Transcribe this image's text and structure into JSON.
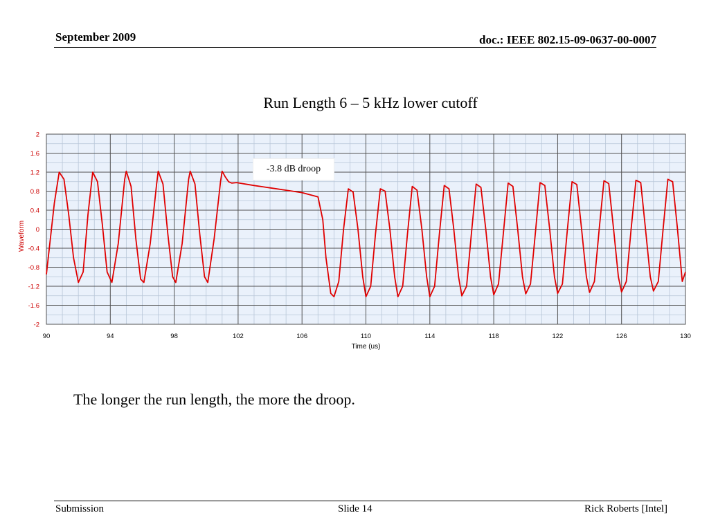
{
  "header": {
    "date": "September 2009",
    "doc_id": "doc.: IEEE 802.15-09-0637-00-0007"
  },
  "slide": {
    "title": "Run Length 6 – 5 kHz lower cutoff",
    "body_text": "The longer the run length, the more the droop."
  },
  "footer": {
    "left": "Submission",
    "center": "Slide 14",
    "right": "Rick Roberts [Intel]"
  },
  "colors": {
    "series": "#e00000",
    "axis_label": "#cc0000",
    "plot_bg": "#eaf1fb",
    "major_grid": "#505050",
    "minor_grid": "#b8c6d8"
  },
  "chart_data": {
    "type": "line",
    "title": "",
    "xlabel": "Time (us)",
    "ylabel": "Waveform",
    "xlim": [
      90,
      130
    ],
    "ylim": [
      -2,
      2
    ],
    "x_ticks": [
      90,
      94,
      98,
      102,
      106,
      110,
      114,
      118,
      122,
      126,
      130
    ],
    "y_ticks": [
      "2",
      "1.6",
      "1.2",
      "0.8",
      "0.4",
      "0",
      "-0.4",
      "-0.8",
      "-1.2",
      "-1.6",
      "-2"
    ],
    "grid": true,
    "annotations": [
      {
        "text": "-3.8 dB droop"
      }
    ],
    "series": [
      {
        "points": [
          [
            90.0,
            -0.95
          ],
          [
            90.5,
            0.55
          ],
          [
            90.8,
            1.2
          ],
          [
            91.1,
            1.05
          ],
          [
            91.4,
            0.3
          ],
          [
            91.7,
            -0.6
          ],
          [
            92.0,
            -1.12
          ],
          [
            92.3,
            -0.9
          ],
          [
            92.6,
            0.3
          ],
          [
            92.9,
            1.2
          ],
          [
            93.2,
            1.0
          ],
          [
            93.5,
            0.1
          ],
          [
            93.8,
            -0.9
          ],
          [
            94.1,
            -1.12
          ],
          [
            94.5,
            -0.3
          ],
          [
            94.9,
            1.05
          ],
          [
            95.0,
            1.22
          ],
          [
            95.3,
            0.9
          ],
          [
            95.6,
            -0.2
          ],
          [
            95.9,
            -1.05
          ],
          [
            96.1,
            -1.12
          ],
          [
            96.5,
            -0.3
          ],
          [
            96.9,
            0.95
          ],
          [
            97.0,
            1.22
          ],
          [
            97.3,
            0.95
          ],
          [
            97.6,
            -0.1
          ],
          [
            97.9,
            -1.0
          ],
          [
            98.1,
            -1.12
          ],
          [
            98.5,
            -0.3
          ],
          [
            98.9,
            1.05
          ],
          [
            99.0,
            1.22
          ],
          [
            99.3,
            0.95
          ],
          [
            99.6,
            -0.1
          ],
          [
            99.9,
            -1.0
          ],
          [
            100.1,
            -1.12
          ],
          [
            100.5,
            -0.2
          ],
          [
            100.9,
            1.0
          ],
          [
            101.0,
            1.22
          ],
          [
            101.2,
            1.1
          ],
          [
            101.4,
            1.0
          ],
          [
            101.6,
            0.97
          ],
          [
            101.9,
            0.98
          ],
          [
            103.0,
            0.92
          ],
          [
            104.0,
            0.87
          ],
          [
            105.0,
            0.82
          ],
          [
            106.0,
            0.77
          ],
          [
            107.0,
            0.68
          ],
          [
            107.3,
            0.2
          ],
          [
            107.5,
            -0.6
          ],
          [
            107.8,
            -1.35
          ],
          [
            108.0,
            -1.42
          ],
          [
            108.3,
            -1.1
          ],
          [
            108.6,
            0.0
          ],
          [
            108.9,
            0.85
          ],
          [
            109.2,
            0.78
          ],
          [
            109.5,
            0.0
          ],
          [
            109.8,
            -1.0
          ],
          [
            110.0,
            -1.42
          ],
          [
            110.3,
            -1.2
          ],
          [
            110.6,
            -0.1
          ],
          [
            110.9,
            0.85
          ],
          [
            111.2,
            0.8
          ],
          [
            111.5,
            0.0
          ],
          [
            111.8,
            -1.0
          ],
          [
            112.0,
            -1.42
          ],
          [
            112.3,
            -1.2
          ],
          [
            112.6,
            -0.1
          ],
          [
            112.9,
            0.9
          ],
          [
            113.2,
            0.82
          ],
          [
            113.5,
            0.0
          ],
          [
            113.8,
            -1.0
          ],
          [
            114.0,
            -1.42
          ],
          [
            114.3,
            -1.2
          ],
          [
            114.6,
            -0.1
          ],
          [
            114.9,
            0.92
          ],
          [
            115.2,
            0.85
          ],
          [
            115.5,
            0.0
          ],
          [
            115.8,
            -1.0
          ],
          [
            116.0,
            -1.4
          ],
          [
            116.3,
            -1.2
          ],
          [
            116.6,
            -0.1
          ],
          [
            116.9,
            0.95
          ],
          [
            117.2,
            0.88
          ],
          [
            117.5,
            0.0
          ],
          [
            117.8,
            -1.0
          ],
          [
            118.0,
            -1.38
          ],
          [
            118.3,
            -1.15
          ],
          [
            118.6,
            -0.1
          ],
          [
            118.9,
            0.97
          ],
          [
            119.2,
            0.9
          ],
          [
            119.5,
            0.0
          ],
          [
            119.8,
            -1.0
          ],
          [
            120.0,
            -1.36
          ],
          [
            120.3,
            -1.15
          ],
          [
            120.6,
            -0.1
          ],
          [
            120.9,
            0.98
          ],
          [
            121.2,
            0.92
          ],
          [
            121.5,
            0.0
          ],
          [
            121.8,
            -1.0
          ],
          [
            122.0,
            -1.35
          ],
          [
            122.3,
            -1.15
          ],
          [
            122.6,
            -0.05
          ],
          [
            122.9,
            1.0
          ],
          [
            123.2,
            0.94
          ],
          [
            123.5,
            0.0
          ],
          [
            123.8,
            -1.0
          ],
          [
            124.0,
            -1.33
          ],
          [
            124.3,
            -1.1
          ],
          [
            124.6,
            0.0
          ],
          [
            124.9,
            1.02
          ],
          [
            125.2,
            0.96
          ],
          [
            125.5,
            0.0
          ],
          [
            125.8,
            -1.0
          ],
          [
            126.0,
            -1.32
          ],
          [
            126.3,
            -1.1
          ],
          [
            126.6,
            0.0
          ],
          [
            126.9,
            1.03
          ],
          [
            127.2,
            0.98
          ],
          [
            127.5,
            0.0
          ],
          [
            127.8,
            -1.0
          ],
          [
            128.0,
            -1.3
          ],
          [
            128.3,
            -1.1
          ],
          [
            128.6,
            0.0
          ],
          [
            128.9,
            1.05
          ],
          [
            129.2,
            1.0
          ],
          [
            129.5,
            0.0
          ],
          [
            129.8,
            -1.1
          ],
          [
            130.0,
            -0.9
          ]
        ]
      }
    ]
  }
}
